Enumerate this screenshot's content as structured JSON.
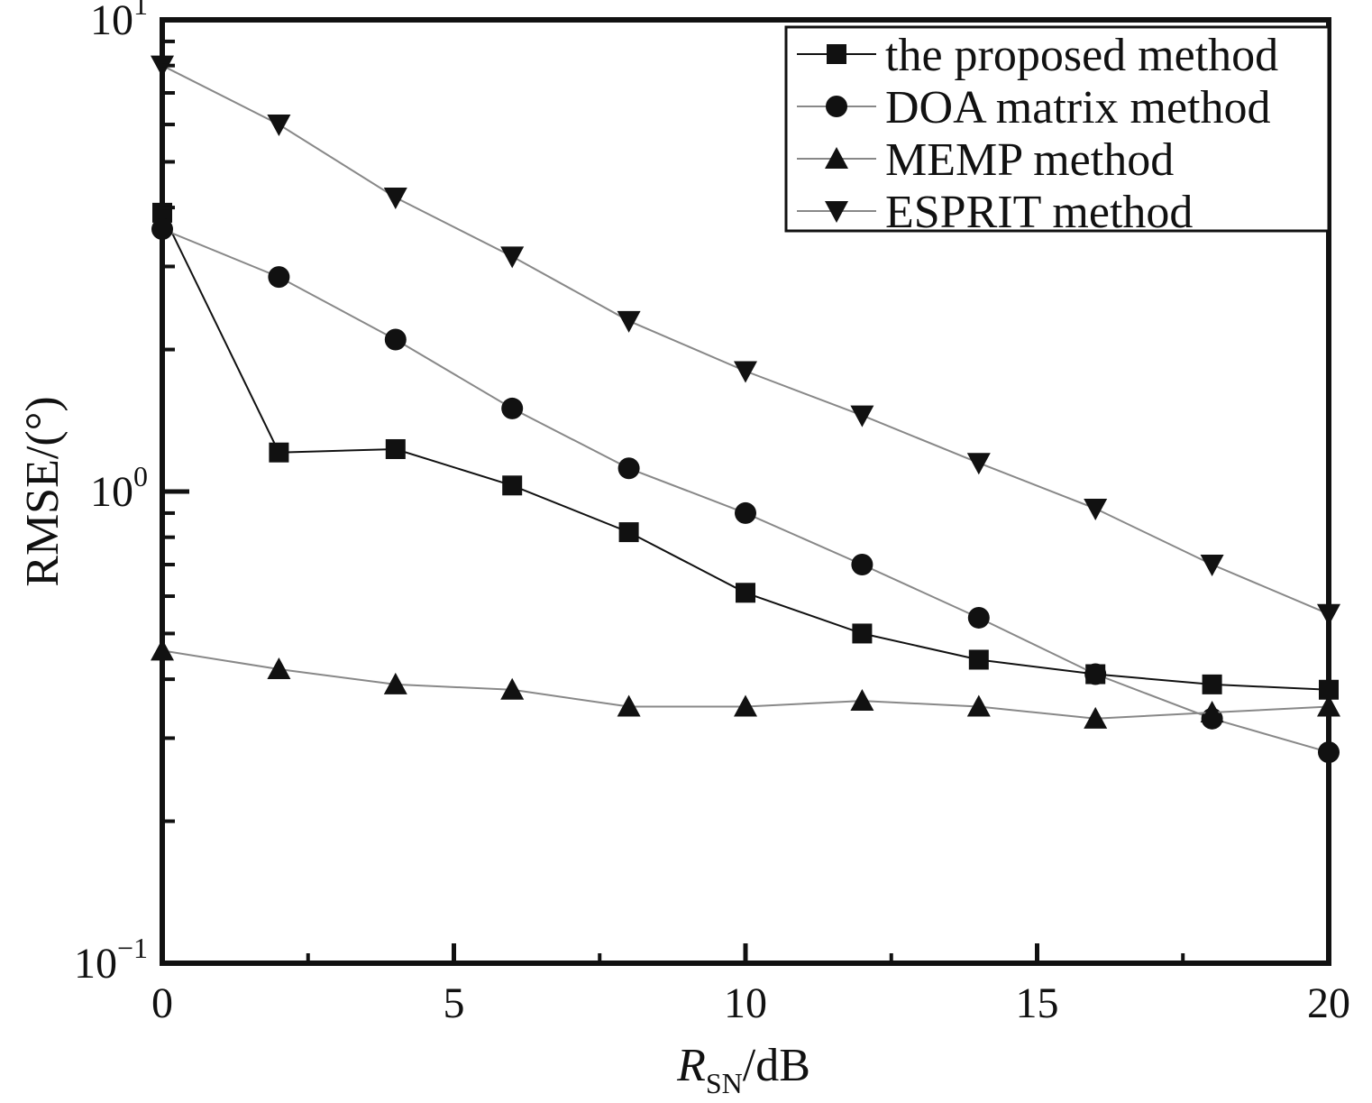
{
  "chart_data": {
    "type": "line",
    "xlabel": {
      "main": "R",
      "sub": "SN",
      "unit": "/dB"
    },
    "ylabel": "RMSE/(°)",
    "yscale": "log",
    "xlim": [
      0,
      20
    ],
    "ylim": [
      0.1,
      10
    ],
    "x_ticks": [
      0,
      5,
      10,
      15,
      20
    ],
    "y_ticks": [
      {
        "value": 10,
        "base": "10",
        "exp": "1"
      },
      {
        "value": 1,
        "base": "10",
        "exp": "0"
      },
      {
        "value": 0.1,
        "base": "10",
        "exp": "−1"
      }
    ],
    "grid": false,
    "legend_position": "top-right",
    "x": [
      0,
      2,
      4,
      6,
      8,
      10,
      12,
      14,
      16,
      18,
      20
    ],
    "series": [
      {
        "name": "the proposed method",
        "marker": "square",
        "line_color": "#111111",
        "values": [
          3.9,
          1.21,
          1.23,
          1.03,
          0.82,
          0.61,
          0.5,
          0.44,
          0.41,
          0.39,
          0.38
        ]
      },
      {
        "name": "DOA matrix method",
        "marker": "circle",
        "line_color": "#888888",
        "values": [
          3.6,
          2.85,
          2.1,
          1.5,
          1.12,
          0.9,
          0.7,
          0.54,
          0.41,
          0.33,
          0.28
        ]
      },
      {
        "name": "MEMP method",
        "marker": "triangle-up",
        "line_color": "#888888",
        "values": [
          0.46,
          0.42,
          0.39,
          0.38,
          0.35,
          0.35,
          0.36,
          0.35,
          0.33,
          0.34,
          0.35
        ]
      },
      {
        "name": "ESPRIT method",
        "marker": "triangle-down",
        "line_color": "#888888",
        "values": [
          8.0,
          6.0,
          4.2,
          3.15,
          2.3,
          1.8,
          1.45,
          1.15,
          0.92,
          0.7,
          0.55
        ]
      }
    ]
  }
}
